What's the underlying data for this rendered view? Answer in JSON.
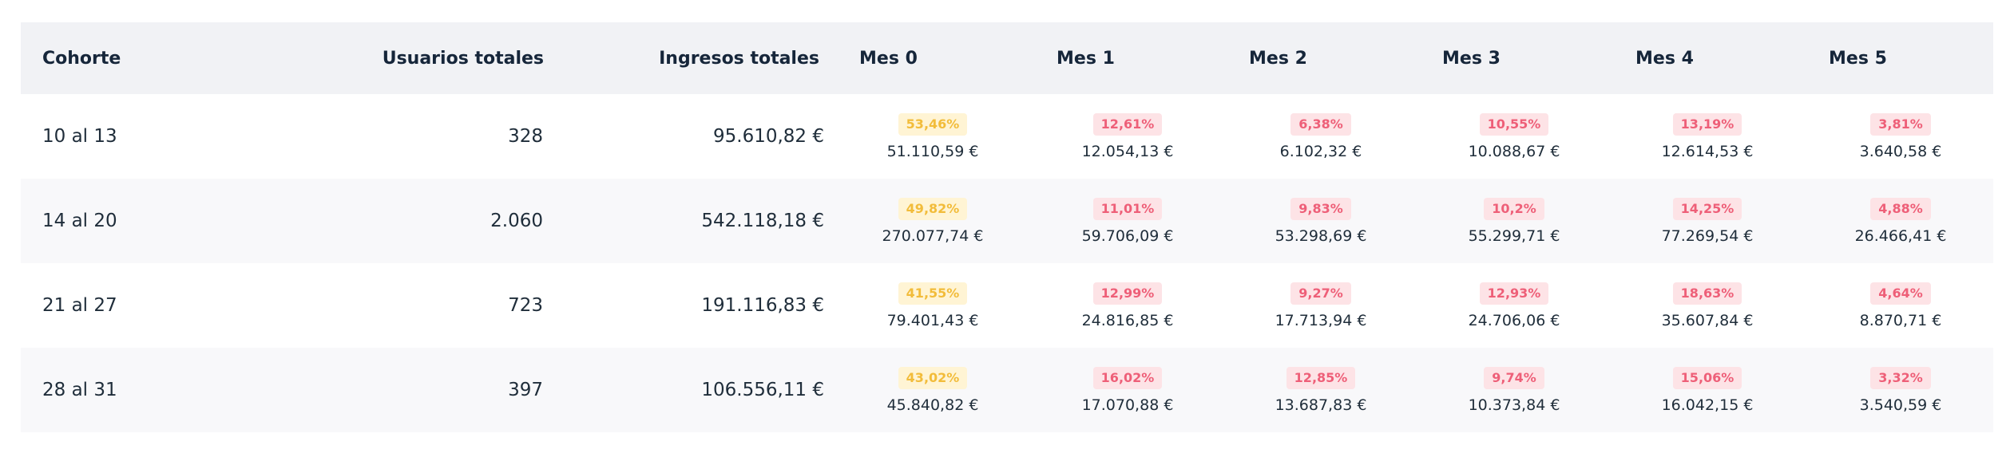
{
  "header": {
    "cohort": "Cohorte",
    "users": "Usuarios totales",
    "income": "Ingresos totales",
    "months": [
      "Mes 0",
      "Mes 1",
      "Mes 2",
      "Mes 3",
      "Mes 4",
      "Mes 5"
    ]
  },
  "colors": {
    "header_bg": "#f1f2f5",
    "alt_row_bg": "#f8f8fa",
    "badge_yellow": "#f2bc3a",
    "badge_pink": "#ee5f78"
  },
  "rows": [
    {
      "cohort": "10 al 13",
      "users": "328",
      "income": "95.610,82 €",
      "months": [
        {
          "pct": "53,46%",
          "tone": "yellow",
          "amount": "51.110,59 €"
        },
        {
          "pct": "12,61%",
          "tone": "pink",
          "amount": "12.054,13 €"
        },
        {
          "pct": "6,38%",
          "tone": "pink",
          "amount": "6.102,32  €"
        },
        {
          "pct": "10,55%",
          "tone": "pink",
          "amount": "10.088,67 €"
        },
        {
          "pct": "13,19%",
          "tone": "pink",
          "amount": "12.614,53 €"
        },
        {
          "pct": "3,81%",
          "tone": "pink",
          "amount": "3.640,58  €"
        }
      ]
    },
    {
      "cohort": "14 al 20",
      "users": "2.060",
      "income": "542.118,18 €",
      "months": [
        {
          "pct": "49,82%",
          "tone": "yellow",
          "amount": "270.077,74 €"
        },
        {
          "pct": "11,01%",
          "tone": "pink",
          "amount": "59.706,09 €"
        },
        {
          "pct": "9,83%",
          "tone": "pink",
          "amount": "53.298,69 €"
        },
        {
          "pct": "10,2%",
          "tone": "pink",
          "amount": "55.299,71 €"
        },
        {
          "pct": "14,25%",
          "tone": "pink",
          "amount": "77.269,54 €"
        },
        {
          "pct": "4,88%",
          "tone": "pink",
          "amount": "26.466,41 €"
        }
      ]
    },
    {
      "cohort": "21 al 27",
      "users": "723",
      "income": "191.116,83 €",
      "months": [
        {
          "pct": "41,55%",
          "tone": "yellow",
          "amount": "79.401,43 €"
        },
        {
          "pct": "12,99%",
          "tone": "pink",
          "amount": "24.816,85 €"
        },
        {
          "pct": "9,27%",
          "tone": "pink",
          "amount": "17.713,94  €"
        },
        {
          "pct": "12,93%",
          "tone": "pink",
          "amount": "24.706,06 €"
        },
        {
          "pct": "18,63%",
          "tone": "pink",
          "amount": "35.607,84 €"
        },
        {
          "pct": "4,64%",
          "tone": "pink",
          "amount": "8.870,71 €"
        }
      ]
    },
    {
      "cohort": "28 al 31",
      "users": "397",
      "income": "106.556,11 €",
      "months": [
        {
          "pct": "43,02%",
          "tone": "yellow",
          "amount": "45.840,82 €"
        },
        {
          "pct": "16,02%",
          "tone": "pink",
          "amount": "17.070,88 €"
        },
        {
          "pct": "12,85%",
          "tone": "pink",
          "amount": "13.687,83 €"
        },
        {
          "pct": "9,74%",
          "tone": "pink",
          "amount": "10.373,84 €"
        },
        {
          "pct": "15,06%",
          "tone": "pink",
          "amount": "16.042,15 €"
        },
        {
          "pct": "3,32%",
          "tone": "pink",
          "amount": "3.540,59  €"
        }
      ]
    }
  ]
}
